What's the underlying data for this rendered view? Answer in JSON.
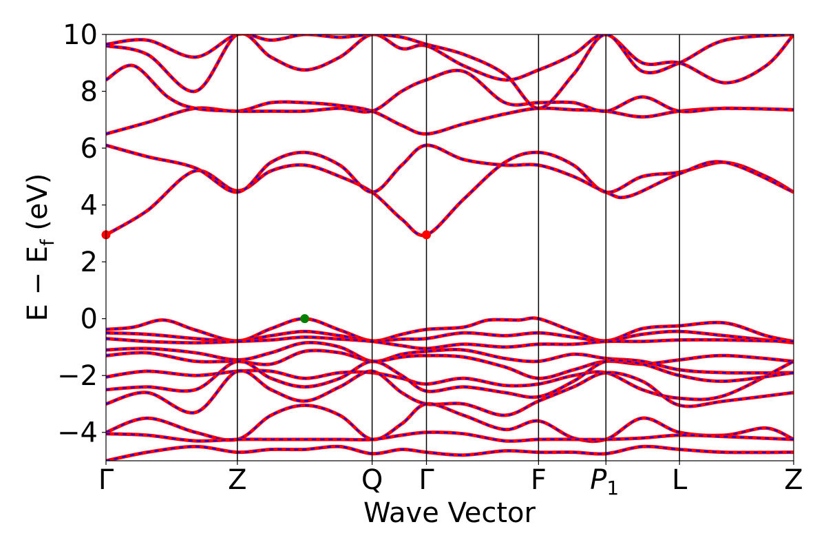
{
  "chart_data": {
    "type": "line",
    "title": "",
    "xlabel": "Wave Vector",
    "ylabel": "E − E",
    "ylabel_sub": "f",
    "ylabel_unit": " (eV)",
    "ylim": [
      -5,
      10
    ],
    "yticks": [
      -4,
      -2,
      0,
      2,
      4,
      6,
      8,
      10
    ],
    "ytick_labels": [
      "−4",
      "−2",
      "0",
      "2",
      "4",
      "6",
      "8",
      "10"
    ],
    "grid": false,
    "kpath": [
      {
        "label": "Γ",
        "x": 0.0
      },
      {
        "label": "Z",
        "x": 0.191
      },
      {
        "label": "Q",
        "x": 0.387
      },
      {
        "label": "Γ",
        "x": 0.466
      },
      {
        "label": "F",
        "x": 0.629
      },
      {
        "label": "P",
        "sub": "1",
        "x": 0.727
      },
      {
        "label": "L",
        "x": 0.834
      },
      {
        "label": "Z",
        "x": 1.0
      }
    ],
    "series_colors": {
      "red_solid": "#ff0000",
      "blue_dashed": "#0000ff"
    },
    "bands": [
      [
        [
          0.0,
          -0.38
        ],
        [
          0.04,
          -0.3
        ],
        [
          0.084,
          -0.05
        ],
        [
          0.13,
          -0.4
        ],
        [
          0.191,
          -0.78
        ],
        [
          0.24,
          -0.35
        ],
        [
          0.289,
          0.0
        ],
        [
          0.34,
          -0.4
        ],
        [
          0.387,
          -0.78
        ],
        [
          0.43,
          -0.55
        ],
        [
          0.466,
          -0.38
        ],
        [
          0.52,
          -0.3
        ],
        [
          0.556,
          -0.05
        ],
        [
          0.6,
          -0.05
        ],
        [
          0.629,
          0.0
        ],
        [
          0.68,
          -0.45
        ],
        [
          0.727,
          -0.78
        ],
        [
          0.78,
          -0.35
        ],
        [
          0.834,
          -0.25
        ],
        [
          0.9,
          -0.15
        ],
        [
          0.96,
          -0.6
        ],
        [
          1.0,
          -0.8
        ]
      ],
      [
        [
          0.0,
          -0.5
        ],
        [
          0.06,
          -0.55
        ],
        [
          0.13,
          -0.7
        ],
        [
          0.191,
          -0.78
        ],
        [
          0.24,
          -0.6
        ],
        [
          0.289,
          -0.45
        ],
        [
          0.34,
          -0.6
        ],
        [
          0.387,
          -0.78
        ],
        [
          0.43,
          -0.72
        ],
        [
          0.466,
          -0.7
        ],
        [
          0.52,
          -0.5
        ],
        [
          0.58,
          -0.6
        ],
        [
          0.629,
          -0.5
        ],
        [
          0.68,
          -0.65
        ],
        [
          0.727,
          -0.78
        ],
        [
          0.78,
          -0.55
        ],
        [
          0.834,
          -0.45
        ],
        [
          0.9,
          -0.6
        ],
        [
          1.0,
          -0.85
        ]
      ],
      [
        [
          0.0,
          -0.7
        ],
        [
          0.06,
          -0.8
        ],
        [
          0.13,
          -0.85
        ],
        [
          0.191,
          -0.8
        ],
        [
          0.24,
          -0.75
        ],
        [
          0.289,
          -0.65
        ],
        [
          0.34,
          -0.72
        ],
        [
          0.387,
          -0.8
        ],
        [
          0.43,
          -0.95
        ],
        [
          0.466,
          -1.05
        ],
        [
          0.52,
          -0.9
        ],
        [
          0.58,
          -1.0
        ],
        [
          0.629,
          -0.9
        ],
        [
          0.68,
          -0.9
        ],
        [
          0.727,
          -0.8
        ],
        [
          0.78,
          -0.8
        ],
        [
          0.834,
          -0.75
        ],
        [
          0.9,
          -0.75
        ],
        [
          1.0,
          -0.8
        ]
      ],
      [
        [
          0.0,
          -1.1
        ],
        [
          0.06,
          -1.05
        ],
        [
          0.13,
          -1.2
        ],
        [
          0.191,
          -1.45
        ],
        [
          0.24,
          -1.2
        ],
        [
          0.289,
          -0.85
        ],
        [
          0.34,
          -1.0
        ],
        [
          0.387,
          -1.5
        ],
        [
          0.43,
          -1.25
        ],
        [
          0.466,
          -1.15
        ],
        [
          0.52,
          -1.1
        ],
        [
          0.58,
          -1.4
        ],
        [
          0.629,
          -1.5
        ],
        [
          0.68,
          -1.25
        ],
        [
          0.727,
          -1.4
        ],
        [
          0.78,
          -1.5
        ],
        [
          0.834,
          -1.8
        ],
        [
          0.9,
          -1.9
        ],
        [
          1.0,
          -1.9
        ]
      ],
      [
        [
          0.0,
          -1.3
        ],
        [
          0.06,
          -1.2
        ],
        [
          0.13,
          -1.5
        ],
        [
          0.191,
          -1.5
        ],
        [
          0.24,
          -1.6
        ],
        [
          0.289,
          -1.15
        ],
        [
          0.34,
          -1.2
        ],
        [
          0.387,
          -1.5
        ],
        [
          0.43,
          -1.35
        ],
        [
          0.466,
          -1.3
        ],
        [
          0.52,
          -1.35
        ],
        [
          0.58,
          -1.7
        ],
        [
          0.629,
          -2.1
        ],
        [
          0.68,
          -1.8
        ],
        [
          0.727,
          -1.5
        ],
        [
          0.78,
          -1.6
        ],
        [
          0.834,
          -1.45
        ],
        [
          0.9,
          -1.3
        ],
        [
          1.0,
          -1.5
        ]
      ],
      [
        [
          0.0,
          -2.05
        ],
        [
          0.06,
          -1.85
        ],
        [
          0.13,
          -2.0
        ],
        [
          0.191,
          -1.85
        ],
        [
          0.24,
          -1.85
        ],
        [
          0.289,
          -2.1
        ],
        [
          0.34,
          -1.9
        ],
        [
          0.387,
          -1.9
        ],
        [
          0.43,
          -2.1
        ],
        [
          0.466,
          -2.3
        ],
        [
          0.52,
          -2.1
        ],
        [
          0.58,
          -2.35
        ],
        [
          0.629,
          -2.3
        ],
        [
          0.68,
          -2.0
        ],
        [
          0.727,
          -1.9
        ],
        [
          0.78,
          -2.5
        ],
        [
          0.834,
          -2.8
        ],
        [
          0.9,
          -2.7
        ],
        [
          1.0,
          -1.5
        ]
      ],
      [
        [
          0.0,
          -2.5
        ],
        [
          0.06,
          -2.4
        ],
        [
          0.13,
          -2.5
        ],
        [
          0.191,
          -1.5
        ],
        [
          0.24,
          -2.1
        ],
        [
          0.289,
          -2.4
        ],
        [
          0.34,
          -2.1
        ],
        [
          0.387,
          -1.5
        ],
        [
          0.43,
          -2.0
        ],
        [
          0.466,
          -2.55
        ],
        [
          0.52,
          -2.4
        ],
        [
          0.58,
          -2.6
        ],
        [
          0.629,
          -2.75
        ],
        [
          0.68,
          -2.2
        ],
        [
          0.727,
          -1.5
        ],
        [
          0.78,
          -1.6
        ],
        [
          0.834,
          -2.0
        ],
        [
          0.9,
          -2.2
        ],
        [
          1.0,
          -1.9
        ]
      ],
      [
        [
          0.0,
          -3.0
        ],
        [
          0.06,
          -2.6
        ],
        [
          0.13,
          -3.3
        ],
        [
          0.191,
          -1.85
        ],
        [
          0.24,
          -2.5
        ],
        [
          0.289,
          -2.9
        ],
        [
          0.34,
          -2.4
        ],
        [
          0.387,
          -1.85
        ],
        [
          0.43,
          -2.6
        ],
        [
          0.466,
          -3.0
        ],
        [
          0.52,
          -3.0
        ],
        [
          0.58,
          -3.4
        ],
        [
          0.629,
          -2.9
        ],
        [
          0.68,
          -2.4
        ],
        [
          0.727,
          -1.9
        ],
        [
          0.78,
          -2.2
        ],
        [
          0.834,
          -3.05
        ],
        [
          0.9,
          -2.9
        ],
        [
          1.0,
          -2.6
        ]
      ],
      [
        [
          0.0,
          -4.0
        ],
        [
          0.06,
          -3.5
        ],
        [
          0.13,
          -4.0
        ],
        [
          0.191,
          -4.25
        ],
        [
          0.24,
          -3.4
        ],
        [
          0.289,
          -3.05
        ],
        [
          0.34,
          -3.4
        ],
        [
          0.387,
          -4.25
        ],
        [
          0.43,
          -3.7
        ],
        [
          0.466,
          -3.0
        ],
        [
          0.52,
          -3.4
        ],
        [
          0.58,
          -3.9
        ],
        [
          0.629,
          -3.6
        ],
        [
          0.68,
          -4.2
        ],
        [
          0.727,
          -4.25
        ],
        [
          0.78,
          -3.5
        ],
        [
          0.834,
          -4.0
        ],
        [
          0.9,
          -4.1
        ],
        [
          0.96,
          -3.85
        ],
        [
          1.0,
          -4.25
        ]
      ],
      [
        [
          0.0,
          -4.05
        ],
        [
          0.06,
          -4.1
        ],
        [
          0.13,
          -4.3
        ],
        [
          0.191,
          -4.25
        ],
        [
          0.24,
          -4.25
        ],
        [
          0.289,
          -4.25
        ],
        [
          0.34,
          -4.25
        ],
        [
          0.387,
          -4.25
        ],
        [
          0.43,
          -4.1
        ],
        [
          0.466,
          -4.0
        ],
        [
          0.52,
          -4.05
        ],
        [
          0.58,
          -4.3
        ],
        [
          0.629,
          -4.25
        ],
        [
          0.68,
          -4.25
        ],
        [
          0.727,
          -4.25
        ],
        [
          0.78,
          -4.2
        ],
        [
          0.834,
          -4.1
        ],
        [
          0.9,
          -4.15
        ],
        [
          1.0,
          -4.25
        ]
      ],
      [
        [
          0.0,
          -5.0
        ],
        [
          0.06,
          -4.7
        ],
        [
          0.13,
          -4.5
        ],
        [
          0.191,
          -4.7
        ],
        [
          0.24,
          -4.6
        ],
        [
          0.289,
          -4.6
        ],
        [
          0.34,
          -4.5
        ],
        [
          0.387,
          -4.75
        ],
        [
          0.43,
          -4.6
        ],
        [
          0.466,
          -4.7
        ],
        [
          0.52,
          -4.8
        ],
        [
          0.58,
          -4.65
        ],
        [
          0.629,
          -4.7
        ],
        [
          0.68,
          -4.7
        ],
        [
          0.727,
          -4.75
        ],
        [
          0.78,
          -4.5
        ],
        [
          0.834,
          -4.6
        ],
        [
          0.9,
          -4.7
        ],
        [
          1.0,
          -4.7
        ]
      ],
      [
        [
          0.0,
          2.95
        ],
        [
          0.06,
          3.8
        ],
        [
          0.13,
          5.2
        ],
        [
          0.191,
          4.5
        ],
        [
          0.24,
          5.2
        ],
        [
          0.289,
          5.4
        ],
        [
          0.34,
          5.0
        ],
        [
          0.387,
          4.45
        ],
        [
          0.43,
          3.5
        ],
        [
          0.466,
          2.95
        ],
        [
          0.52,
          4.2
        ],
        [
          0.58,
          5.5
        ],
        [
          0.629,
          5.85
        ],
        [
          0.68,
          5.4
        ],
        [
          0.727,
          4.45
        ],
        [
          0.78,
          5.0
        ],
        [
          0.834,
          5.15
        ],
        [
          0.9,
          5.5
        ],
        [
          0.96,
          5.0
        ],
        [
          1.0,
          4.45
        ]
      ],
      [
        [
          0.0,
          6.1
        ],
        [
          0.06,
          5.7
        ],
        [
          0.13,
          5.3
        ],
        [
          0.191,
          4.45
        ],
        [
          0.24,
          5.5
        ],
        [
          0.289,
          5.85
        ],
        [
          0.34,
          5.4
        ],
        [
          0.387,
          4.45
        ],
        [
          0.43,
          5.4
        ],
        [
          0.466,
          6.1
        ],
        [
          0.52,
          5.6
        ],
        [
          0.58,
          5.4
        ],
        [
          0.629,
          5.4
        ],
        [
          0.68,
          5.0
        ],
        [
          0.727,
          4.45
        ],
        [
          0.76,
          4.3
        ],
        [
          0.834,
          5.1
        ],
        [
          0.9,
          5.5
        ],
        [
          1.0,
          4.45
        ]
      ],
      [
        [
          0.0,
          6.5
        ],
        [
          0.06,
          6.9
        ],
        [
          0.13,
          7.4
        ],
        [
          0.191,
          7.3
        ],
        [
          0.24,
          7.6
        ],
        [
          0.289,
          7.6
        ],
        [
          0.34,
          7.5
        ],
        [
          0.387,
          7.3
        ],
        [
          0.43,
          6.8
        ],
        [
          0.466,
          6.5
        ],
        [
          0.52,
          6.85
        ],
        [
          0.58,
          7.2
        ],
        [
          0.629,
          7.4
        ],
        [
          0.68,
          7.35
        ],
        [
          0.727,
          7.3
        ],
        [
          0.78,
          7.1
        ],
        [
          0.834,
          7.3
        ],
        [
          0.9,
          7.4
        ],
        [
          1.0,
          7.35
        ]
      ],
      [
        [
          0.0,
          8.4
        ],
        [
          0.04,
          8.9
        ],
        [
          0.09,
          7.8
        ],
        [
          0.13,
          7.4
        ],
        [
          0.191,
          7.3
        ],
        [
          0.24,
          7.3
        ],
        [
          0.289,
          7.3
        ],
        [
          0.34,
          7.4
        ],
        [
          0.387,
          7.3
        ],
        [
          0.43,
          8.0
        ],
        [
          0.466,
          8.4
        ],
        [
          0.52,
          8.7
        ],
        [
          0.58,
          7.6
        ],
        [
          0.629,
          7.6
        ],
        [
          0.68,
          7.6
        ],
        [
          0.727,
          7.3
        ],
        [
          0.78,
          7.8
        ],
        [
          0.834,
          7.3
        ],
        [
          0.9,
          7.4
        ],
        [
          1.0,
          7.35
        ]
      ],
      [
        [
          0.0,
          9.6
        ],
        [
          0.06,
          9.3
        ],
        [
          0.13,
          8.0
        ],
        [
          0.191,
          10.0
        ],
        [
          0.24,
          9.2
        ],
        [
          0.289,
          8.75
        ],
        [
          0.34,
          9.2
        ],
        [
          0.387,
          10.0
        ],
        [
          0.43,
          9.5
        ],
        [
          0.466,
          9.6
        ],
        [
          0.52,
          8.9
        ],
        [
          0.58,
          8.4
        ],
        [
          0.629,
          8.75
        ],
        [
          0.68,
          9.3
        ],
        [
          0.727,
          10.0
        ],
        [
          0.78,
          9.0
        ],
        [
          0.834,
          9.0
        ],
        [
          0.9,
          8.3
        ],
        [
          0.96,
          8.9
        ],
        [
          1.0,
          10.0
        ]
      ],
      [
        [
          0.0,
          9.65
        ],
        [
          0.06,
          9.8
        ],
        [
          0.13,
          9.2
        ],
        [
          0.191,
          10.0
        ],
        [
          0.24,
          9.8
        ],
        [
          0.289,
          10.0
        ],
        [
          0.34,
          9.9
        ],
        [
          0.387,
          10.0
        ],
        [
          0.43,
          9.9
        ],
        [
          0.466,
          9.65
        ],
        [
          0.52,
          9.3
        ],
        [
          0.58,
          8.6
        ],
        [
          0.629,
          7.4
        ],
        [
          0.68,
          8.6
        ],
        [
          0.727,
          10.0
        ],
        [
          0.78,
          8.7
        ],
        [
          0.834,
          9.0
        ],
        [
          0.9,
          9.8
        ],
        [
          1.0,
          10.0
        ]
      ]
    ],
    "markers": [
      {
        "name": "cbm-gamma",
        "x": 0.0,
        "y": 2.95,
        "color": "#ff0000"
      },
      {
        "name": "cbm-gamma-2",
        "x": 0.466,
        "y": 2.95,
        "color": "#ff0000"
      },
      {
        "name": "vbm",
        "x": 0.289,
        "y": 0.0,
        "color": "#008000"
      }
    ]
  }
}
